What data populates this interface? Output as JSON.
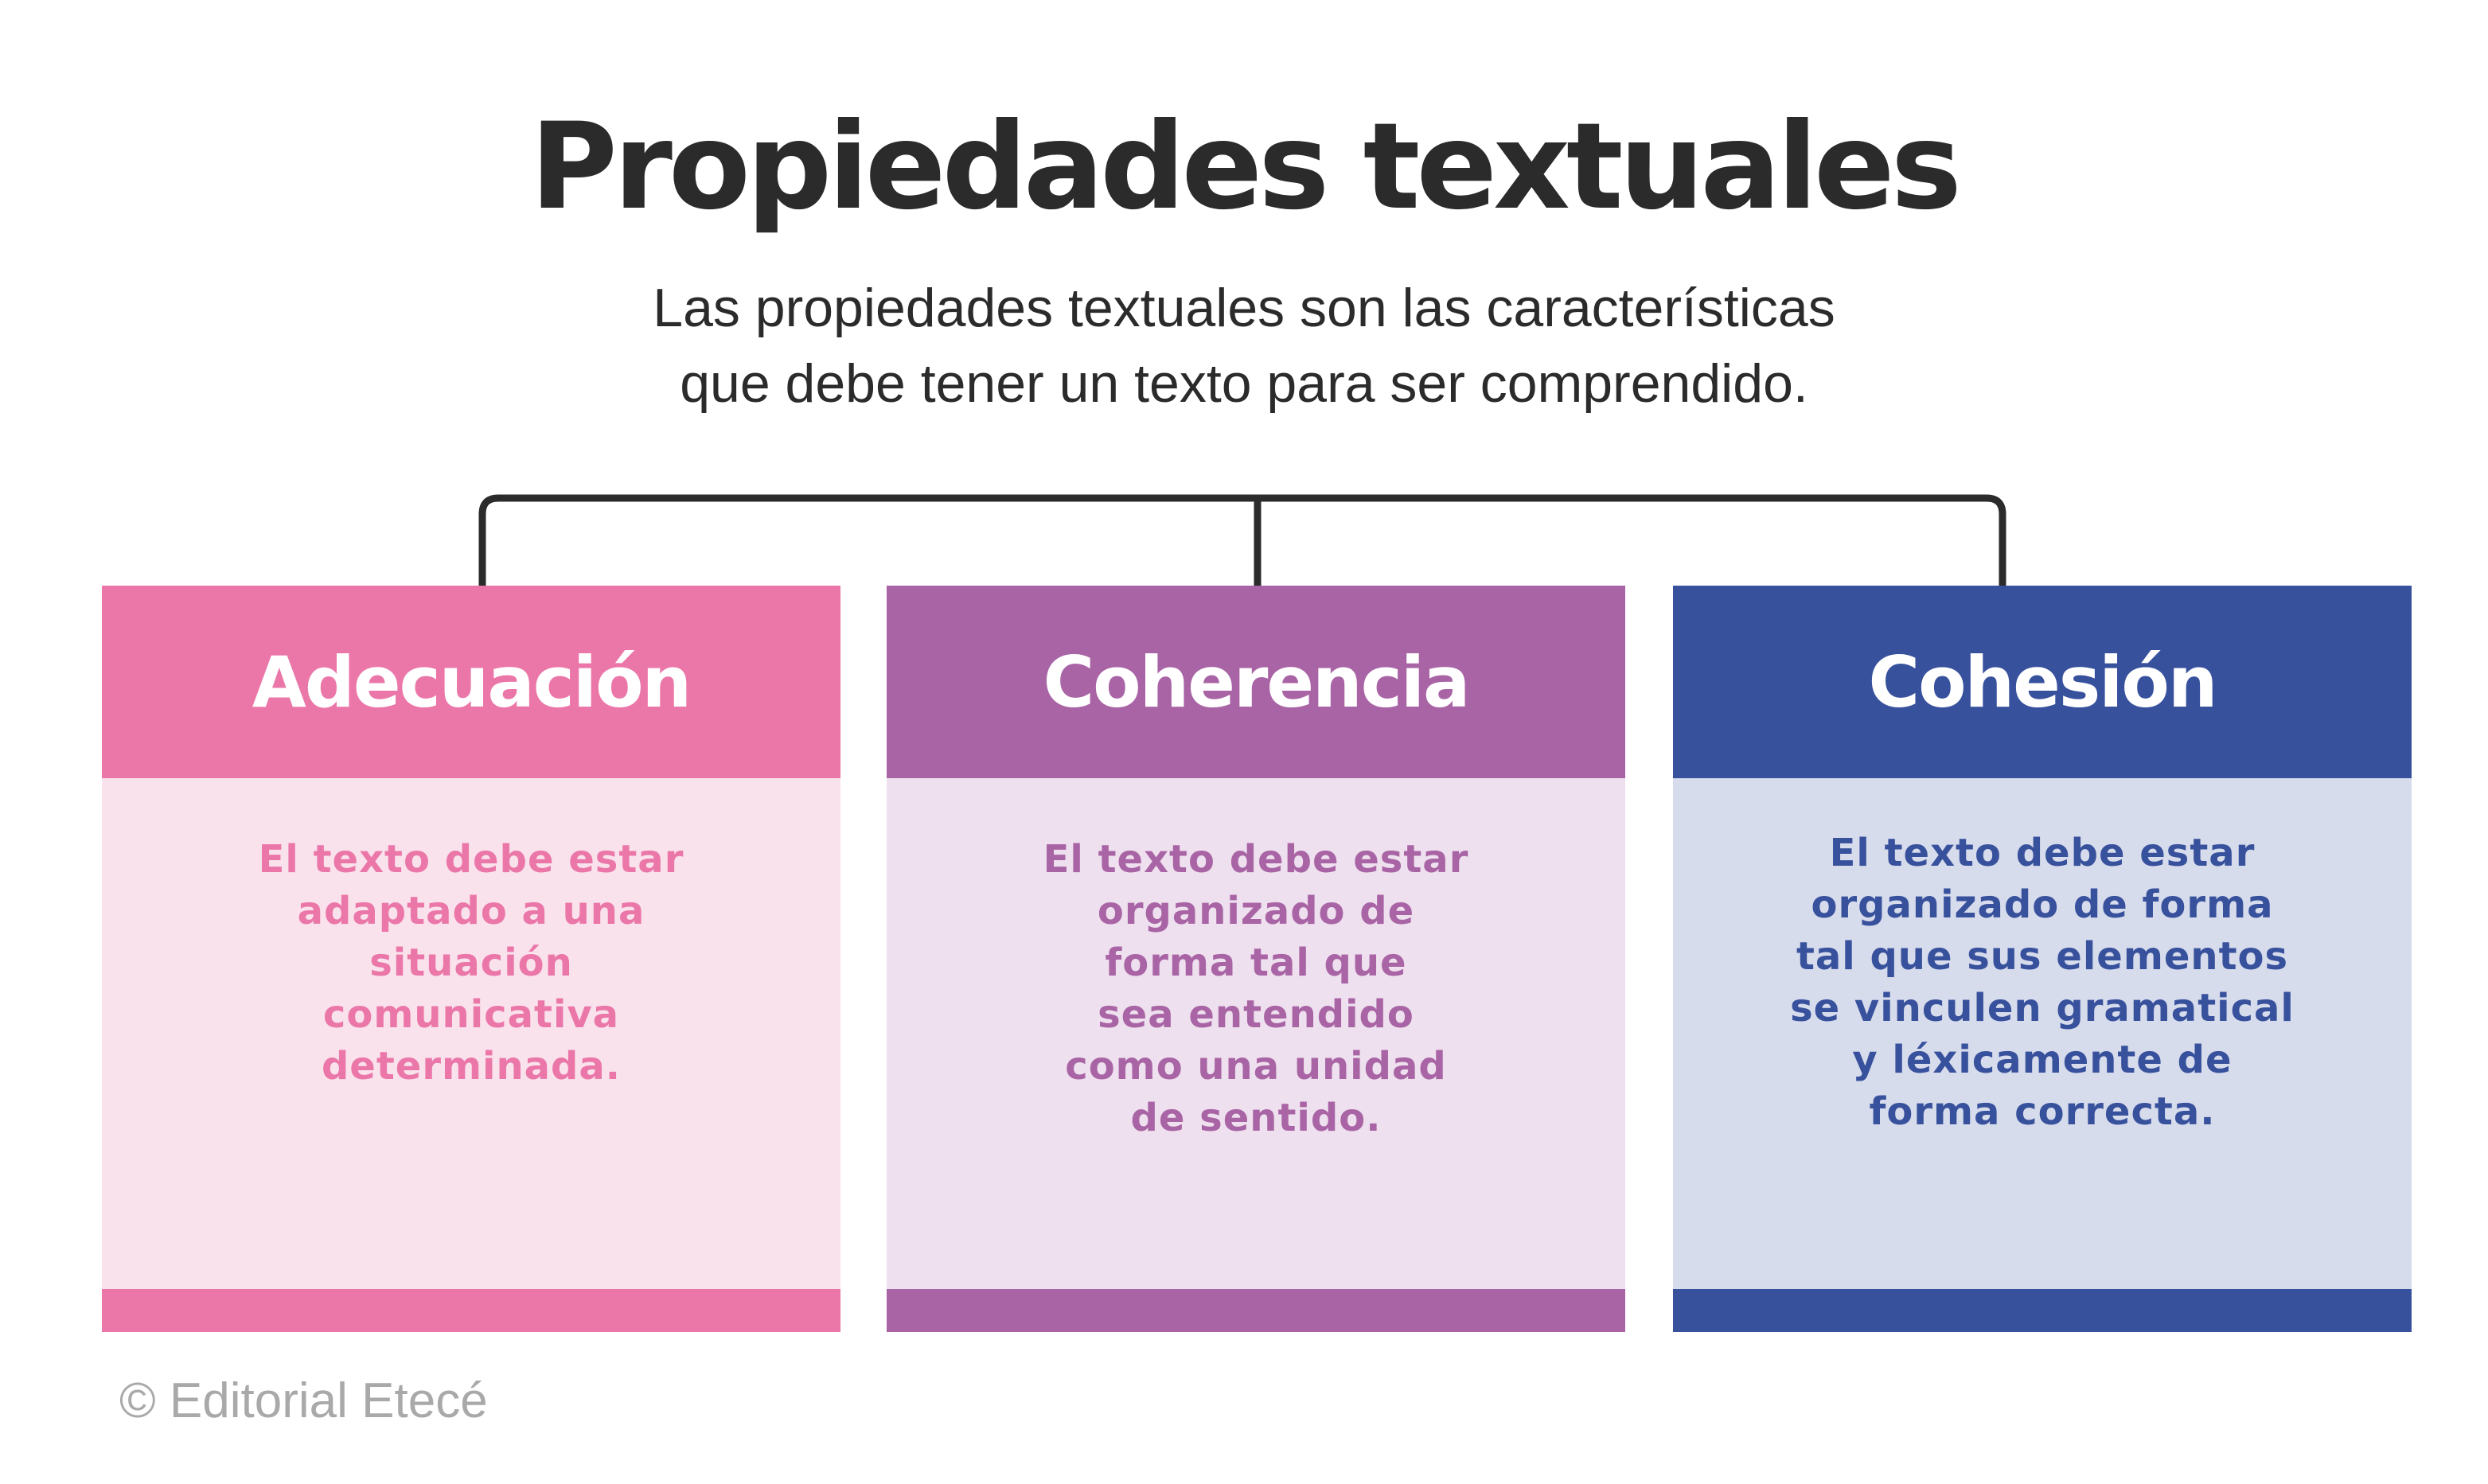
{
  "title": "Propiedades textuales",
  "subtitle": [
    "Las propiedades textuales son las características",
    "que debe tener un texto para ser comprendido."
  ],
  "cards": [
    {
      "heading": "Adecuación",
      "color": "#EB77A9",
      "body_bg": "#F9E2EC",
      "lines": [
        "El texto debe estar",
        "adaptado a una",
        "situación",
        "comunicativa",
        "determinada."
      ]
    },
    {
      "heading": "Coherencia",
      "color": "#A964A5",
      "body_bg": "#EEE0EE",
      "lines": [
        "El texto debe estar",
        "organizado de",
        "forma tal que",
        "sea entendido",
        "como una unidad",
        "de sentido."
      ]
    },
    {
      "heading": "Cohesión",
      "color": "#38519D",
      "body_bg": "#D7DCEC",
      "lines": [
        "El texto debe estar",
        "organizado de forma",
        "tal que sus elementos",
        "se vinculen gramatical",
        "y léxicamente de",
        "forma correcta."
      ]
    }
  ],
  "footer": "© Editorial Etecé",
  "connector_color": "#2b2b2b"
}
